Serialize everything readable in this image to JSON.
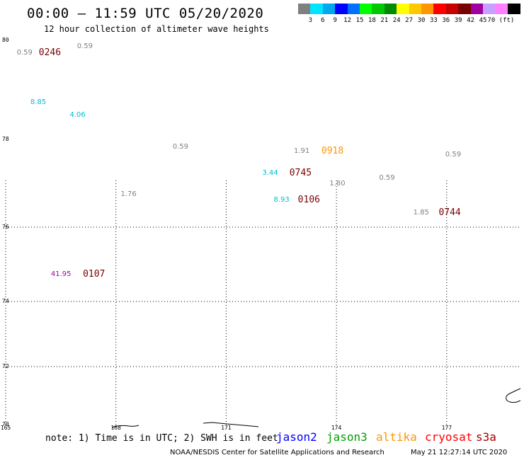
{
  "title": "00:00 – 11:59 UTC 05/20/2020",
  "subtitle": "12 hour collection of altimeter wave heights",
  "scale": {
    "colors": [
      "#808080",
      "#00e5ff",
      "#00a8f0",
      "#0000ff",
      "#0070ff",
      "#00ff00",
      "#00c800",
      "#008c00",
      "#ffff00",
      "#ffc800",
      "#ff9600",
      "#ff0000",
      "#c80000",
      "#780000",
      "#a000a0",
      "#c8a0ff",
      "#ff80ff",
      "#000000"
    ],
    "labels": [
      "3",
      "6",
      "9",
      "12",
      "15",
      "18",
      "21",
      "24",
      "27",
      "30",
      "33",
      "36",
      "39",
      "42",
      "45",
      "70 (ft)"
    ]
  },
  "lat_labels": [
    "80",
    "78",
    "76",
    "74",
    "72",
    "70"
  ],
  "lon_labels": [
    "165",
    "168",
    "171",
    "174",
    "177"
  ],
  "annotations": [
    {
      "text": "0.59",
      "color": "#808080",
      "lon": 165.34,
      "lat": 79.74
    },
    {
      "text": "0.59",
      "color": "#808080",
      "lon": 166.98,
      "lat": 79.87
    },
    {
      "text": "8.85",
      "color": "#00bcd4",
      "lon": 165.71,
      "lat": 78.74
    },
    {
      "text": "4.06",
      "color": "#00bcd4",
      "lon": 166.78,
      "lat": 78.48
    },
    {
      "text": "0.59",
      "color": "#808080",
      "lon": 169.58,
      "lat": 77.83
    },
    {
      "text": "1.91",
      "color": "#808080",
      "lon": 172.88,
      "lat": 77.72
    },
    {
      "text": "0.59",
      "color": "#808080",
      "lon": 177.0,
      "lat": 77.65
    },
    {
      "text": "3.44",
      "color": "#00bcd4",
      "lon": 172.02,
      "lat": 77.23
    },
    {
      "text": "0.59",
      "color": "#808080",
      "lon": 175.2,
      "lat": 77.12
    },
    {
      "text": "1.76",
      "color": "#808080",
      "lon": 168.17,
      "lat": 76.74
    },
    {
      "text": "1.80",
      "color": "#808080",
      "lon": 173.85,
      "lat": 76.99
    },
    {
      "text": "8.93",
      "color": "#00bcd4",
      "lon": 172.33,
      "lat": 76.62
    },
    {
      "text": "1.85",
      "color": "#808080",
      "lon": 176.13,
      "lat": 76.33
    },
    {
      "text": "41.95",
      "color": "#a000a0",
      "lon": 166.27,
      "lat": 74.72
    }
  ],
  "times": [
    {
      "text": "0246",
      "color": "#780000",
      "lon": 165.94,
      "lat": 79.74
    },
    {
      "text": "0918",
      "color": "#ff9600",
      "lon": 173.63,
      "lat": 77.72
    },
    {
      "text": "0745",
      "color": "#780000",
      "lon": 172.76,
      "lat": 77.23
    },
    {
      "text": "0106",
      "color": "#780000",
      "lon": 172.99,
      "lat": 76.62
    },
    {
      "text": "0744",
      "color": "#780000",
      "lon": 176.82,
      "lat": 76.33
    },
    {
      "text": "0107",
      "color": "#780000",
      "lon": 167.14,
      "lat": 74.72
    }
  ],
  "note": "note: 1) Time is in UTC; 2) SWH is in feet",
  "legend": [
    {
      "name": "jason2",
      "color": "#0000ff"
    },
    {
      "name": "jason3",
      "color": "#00a000"
    },
    {
      "name": "altika",
      "color": "#ff9600"
    },
    {
      "name": "cryosat",
      "color": "#ff0000"
    },
    {
      "name": "s3a",
      "color": "#a00000"
    }
  ],
  "footer_left": "NOAA/NESDIS Center for Satellite Applications and Research",
  "footer_right": "May 21 12:27:14 UTC 2020"
}
